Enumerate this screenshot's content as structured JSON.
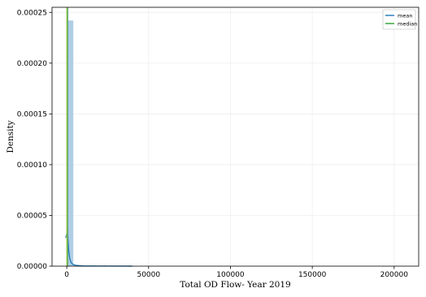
{
  "chart_data": {
    "type": "histogram",
    "xlabel": "Total OD Flow- Year 2019",
    "ylabel": "Density",
    "xlim": [
      -9000,
      215000
    ],
    "ylim": [
      0,
      0.000255
    ],
    "x_ticks": [
      0,
      50000,
      100000,
      150000,
      200000
    ],
    "x_tick_labels": [
      "0",
      "50000",
      "100000",
      "150000",
      "200000"
    ],
    "y_ticks": [
      0,
      5e-05,
      0.0001,
      0.00015,
      0.0002,
      0.00025
    ],
    "y_tick_labels": [
      "0.00000",
      "0.00005",
      "0.00010",
      "0.00015",
      "0.00020",
      "0.00025"
    ],
    "grid": true,
    "legend_position": "top-right",
    "bars": [
      {
        "x0": 0,
        "x1": 4000,
        "value": 0.000242
      },
      {
        "x0": 4000,
        "x1": 8000,
        "value": 1.2e-06
      }
    ],
    "bar_color": "#a6c9e2",
    "kde": {
      "x": [
        -600,
        0,
        400,
        800,
        1200,
        1800,
        2500,
        3500,
        5000,
        7000,
        10000,
        15000,
        25000,
        40000
      ],
      "y": [
        2.8e-05,
        3.2e-05,
        3.8e-05,
        2.5e-05,
        1.5e-05,
        8e-06,
        4e-06,
        2e-06,
        1e-06,
        6e-07,
        3e-07,
        2e-07,
        1e-07,
        5e-08
      ],
      "color": "#1f77b4"
    },
    "mean_line": {
      "x": 700,
      "color": "#1f77b4"
    },
    "median_line": {
      "x": 280,
      "color": "#8dc63f"
    },
    "legend": [
      {
        "label": "mean",
        "color": "#1f77b4"
      },
      {
        "label": "median",
        "color": "#2ca02c"
      }
    ]
  }
}
